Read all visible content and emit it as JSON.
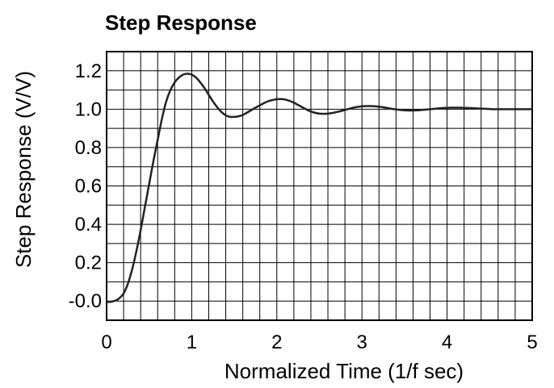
{
  "chart_data": {
    "type": "line",
    "title": "Step Response",
    "xlabel": "Normalized Time (1/f sec)",
    "ylabel": "Step Response (V/V)",
    "xlim": [
      0,
      5
    ],
    "ylim": [
      -0.1,
      1.3
    ],
    "x_ticks": [
      0,
      1,
      2,
      3,
      4,
      5
    ],
    "x_tick_labels": [
      "0",
      "1",
      "2",
      "3",
      "4",
      "5"
    ],
    "y_ticks": [
      0.0,
      0.2,
      0.4,
      0.6,
      0.8,
      1.0,
      1.2
    ],
    "y_tick_labels": [
      "-0.0",
      "0.2",
      "0.4",
      "0.6",
      "0.8",
      "1.0",
      "1.2"
    ],
    "x_grid_step": 0.2,
    "y_grid_step": 0.1,
    "grid": true,
    "legend": "none",
    "line_color": "#222222",
    "grid_color": "#000000",
    "series": [
      {
        "x": [
          0.0,
          0.05,
          0.1,
          0.15,
          0.2,
          0.25,
          0.3,
          0.35,
          0.4,
          0.45,
          0.5,
          0.55,
          0.6,
          0.65,
          0.7,
          0.75,
          0.8,
          0.85,
          0.9,
          0.95,
          1.0,
          1.05,
          1.1,
          1.15,
          1.2,
          1.25,
          1.3,
          1.35,
          1.4,
          1.45,
          1.5,
          1.55,
          1.6,
          1.65,
          1.7,
          1.75,
          1.8,
          1.85,
          1.9,
          1.95,
          2.0,
          2.05,
          2.1,
          2.15,
          2.2,
          2.25,
          2.3,
          2.35,
          2.4,
          2.45,
          2.5,
          2.55,
          2.6,
          2.65,
          2.7,
          2.75,
          2.8,
          2.85,
          2.9,
          2.95,
          3.0,
          3.05,
          3.1,
          3.15,
          3.2,
          3.25,
          3.3,
          3.35,
          3.4,
          3.45,
          3.5,
          3.55,
          3.6,
          3.65,
          3.7,
          3.75,
          3.8,
          3.85,
          3.9,
          3.95,
          4.0,
          4.05,
          4.1,
          4.15,
          4.2,
          4.25,
          4.3,
          4.35,
          4.4,
          4.45,
          4.5,
          4.55,
          4.6,
          4.65,
          4.7,
          4.75,
          4.8,
          4.85,
          4.9,
          4.95,
          5.0
        ],
        "values": [
          -0.005,
          -0.004,
          0.002,
          0.015,
          0.04,
          0.09,
          0.165,
          0.26,
          0.37,
          0.49,
          0.61,
          0.73,
          0.84,
          0.95,
          1.04,
          1.1,
          1.14,
          1.165,
          1.18,
          1.185,
          1.18,
          1.165,
          1.14,
          1.11,
          1.075,
          1.04,
          1.01,
          0.985,
          0.968,
          0.96,
          0.96,
          0.963,
          0.97,
          0.982,
          0.995,
          1.008,
          1.02,
          1.032,
          1.042,
          1.048,
          1.052,
          1.053,
          1.05,
          1.043,
          1.034,
          1.022,
          1.01,
          0.998,
          0.988,
          0.981,
          0.977,
          0.976,
          0.977,
          0.98,
          0.985,
          0.99,
          0.996,
          1.002,
          1.008,
          1.012,
          1.015,
          1.016,
          1.016,
          1.015,
          1.013,
          1.01,
          1.006,
          1.002,
          0.999,
          0.996,
          0.994,
          0.993,
          0.993,
          0.994,
          0.996,
          0.998,
          1.0,
          1.002,
          1.004,
          1.006,
          1.007,
          1.008,
          1.008,
          1.008,
          1.007,
          1.006,
          1.005,
          1.004,
          1.003,
          1.002,
          1.001,
          1.0,
          1.0,
          1.0,
          1.0,
          1.0,
          1.0,
          1.0,
          1.0,
          1.0,
          1.0
        ]
      }
    ]
  }
}
